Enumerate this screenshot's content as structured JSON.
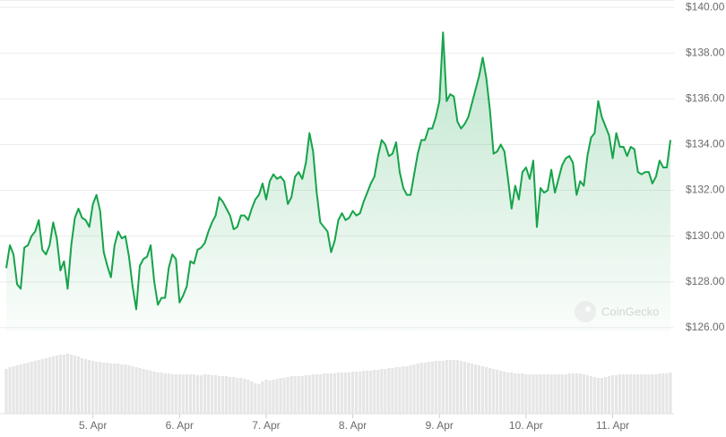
{
  "chart_data": {
    "type": "line",
    "color": "#16a34a",
    "grid": true,
    "watermark": "CoinGecko",
    "x": [
      0,
      1,
      2,
      3,
      4,
      5,
      6,
      7,
      8,
      9,
      10,
      11,
      12,
      13,
      14,
      15,
      16,
      17,
      18,
      19,
      20,
      21,
      22,
      23,
      24,
      25,
      26,
      27,
      28,
      29,
      30,
      31,
      32,
      33,
      34,
      35,
      36,
      37,
      38,
      39,
      40,
      41,
      42,
      43,
      44,
      45,
      46,
      47,
      48,
      49,
      50,
      51,
      52,
      53,
      54,
      55,
      56,
      57,
      58,
      59,
      60,
      61,
      62,
      63,
      64,
      65,
      66,
      67,
      68,
      69,
      70,
      71,
      72,
      73,
      74,
      75,
      76,
      77,
      78,
      79,
      80,
      81,
      82,
      83,
      84,
      85,
      86,
      87,
      88,
      89,
      90,
      91,
      92,
      93,
      94,
      95,
      96,
      97,
      98,
      99,
      100,
      101,
      102,
      103,
      104,
      105,
      106,
      107,
      108,
      109,
      110,
      111,
      112,
      113,
      114,
      115,
      116,
      117,
      118,
      119,
      120,
      121,
      122,
      123,
      124,
      125,
      126,
      127,
      128,
      129,
      130,
      131,
      132,
      133,
      134,
      135,
      136,
      137,
      138,
      139,
      140,
      141,
      142,
      143,
      144,
      145,
      146,
      147,
      148,
      149,
      150,
      151,
      152,
      153,
      154,
      155,
      156,
      157,
      158,
      159,
      160,
      161,
      162,
      163,
      164,
      165,
      166,
      167,
      168,
      169,
      170,
      171,
      172,
      173,
      174,
      175,
      176,
      177,
      178,
      179,
      180,
      181,
      182,
      183,
      184
    ],
    "values": [
      128.6,
      129.6,
      129.2,
      127.9,
      127.7,
      129.5,
      129.6,
      130.0,
      130.2,
      130.7,
      129.4,
      129.2,
      129.6,
      130.6,
      129.9,
      128.5,
      128.9,
      127.7,
      129.6,
      130.8,
      131.2,
      130.8,
      130.7,
      130.4,
      131.4,
      131.8,
      131.1,
      129.3,
      128.7,
      128.2,
      129.6,
      130.2,
      129.9,
      130.0,
      129.1,
      127.8,
      126.8,
      128.7,
      129.0,
      129.1,
      129.6,
      128.0,
      127.0,
      127.3,
      127.3,
      128.6,
      129.2,
      129.0,
      127.1,
      127.4,
      127.8,
      128.9,
      128.8,
      129.4,
      129.5,
      129.7,
      130.2,
      130.6,
      130.9,
      131.7,
      131.5,
      131.2,
      130.9,
      130.3,
      130.4,
      130.9,
      130.9,
      130.7,
      131.2,
      131.6,
      131.8,
      132.3,
      131.6,
      132.4,
      132.7,
      132.5,
      132.6,
      132.4,
      131.4,
      131.7,
      132.6,
      132.8,
      132.5,
      133.2,
      134.5,
      133.7,
      131.9,
      130.6,
      130.4,
      130.2,
      129.3,
      129.8,
      130.7,
      131.0,
      130.7,
      130.8,
      131.1,
      130.9,
      131.0,
      131.5,
      131.9,
      132.3,
      132.6,
      133.5,
      134.2,
      134.0,
      133.5,
      133.6,
      134.1,
      132.8,
      132.1,
      131.8,
      131.8,
      132.7,
      133.6,
      134.2,
      134.2,
      134.7,
      134.7,
      135.2,
      135.9,
      138.9,
      135.9,
      136.2,
      136.1,
      135.0,
      134.7,
      134.9,
      135.2,
      135.8,
      136.4,
      137.0,
      137.8,
      136.9,
      135.5,
      133.6,
      133.7,
      134.0,
      133.7,
      132.5,
      131.2,
      132.2,
      131.6,
      132.8,
      133.0,
      132.5,
      133.3,
      130.4,
      132.1,
      131.9,
      132.0,
      132.9,
      131.9,
      132.5,
      133.1,
      133.4,
      133.5,
      133.2,
      131.8,
      132.4,
      132.2,
      133.5,
      134.3,
      134.5,
      135.9,
      135.2,
      134.8,
      134.4,
      133.4,
      134.5,
      133.9,
      133.9,
      133.5,
      133.9,
      133.8,
      132.8,
      132.7,
      132.8,
      132.8,
      132.3,
      132.6,
      133.3,
      133.0,
      133.0,
      134.2
    ],
    "volume": {
      "color": "#e6e6e6",
      "values": [
        50,
        52,
        53,
        54,
        55,
        56,
        57,
        58,
        59,
        60,
        61,
        62,
        63,
        64,
        65,
        66,
        66,
        67,
        66,
        65,
        64,
        62,
        61,
        60,
        59,
        58,
        58,
        57,
        57,
        56,
        56,
        56,
        55,
        55,
        54,
        53,
        52,
        51,
        50,
        49,
        48,
        47,
        46,
        46,
        45,
        45,
        44,
        44,
        44,
        44,
        44,
        44,
        44,
        43,
        43,
        44,
        44,
        43,
        43,
        42,
        42,
        42,
        41,
        41,
        40,
        40,
        39,
        38,
        36,
        34,
        33,
        36,
        38,
        37,
        38,
        39,
        40,
        40,
        41,
        42,
        42,
        42,
        42,
        43,
        43,
        44,
        44,
        44,
        45,
        45,
        45,
        45,
        46,
        46,
        46,
        46,
        47,
        47,
        47,
        48,
        48,
        48,
        49,
        49,
        50,
        50,
        51,
        51,
        52,
        52,
        53,
        53,
        54,
        55,
        56,
        57,
        57,
        58,
        58,
        59,
        59,
        59,
        60,
        60,
        60,
        60,
        59,
        58,
        57,
        56,
        55,
        54,
        53,
        52,
        51,
        50,
        49,
        48,
        47,
        46,
        46,
        45,
        45,
        45,
        44,
        44,
        44,
        44,
        44,
        44,
        44,
        44,
        44,
        44,
        44,
        44,
        45,
        45,
        45,
        45,
        44,
        43,
        42,
        41,
        40,
        40,
        41,
        42,
        43,
        43,
        44,
        44,
        44,
        44,
        44,
        44,
        44,
        44,
        44,
        44,
        44,
        45,
        45,
        45,
        46
      ]
    },
    "xlim": [
      0,
      184
    ],
    "xticks": [
      {
        "value": 24,
        "label": "5. Apr"
      },
      {
        "value": 48,
        "label": "6. Apr"
      },
      {
        "value": 72,
        "label": "7. Apr"
      },
      {
        "value": 96,
        "label": "8. Apr"
      },
      {
        "value": 120,
        "label": "9. Apr"
      },
      {
        "value": 144,
        "label": "10. Apr"
      },
      {
        "value": 168,
        "label": "11. Apr"
      }
    ],
    "ylim": [
      125.8,
      140.2
    ],
    "yticks": [
      {
        "value": 126,
        "label": "$126.00"
      },
      {
        "value": 128,
        "label": "$128.00"
      },
      {
        "value": 130,
        "label": "$130.00"
      },
      {
        "value": 132,
        "label": "$132.00"
      },
      {
        "value": 134,
        "label": "$134.00"
      },
      {
        "value": 136,
        "label": "$136.00"
      },
      {
        "value": 138,
        "label": "$138.00"
      },
      {
        "value": 140,
        "label": "$140.00"
      }
    ]
  }
}
